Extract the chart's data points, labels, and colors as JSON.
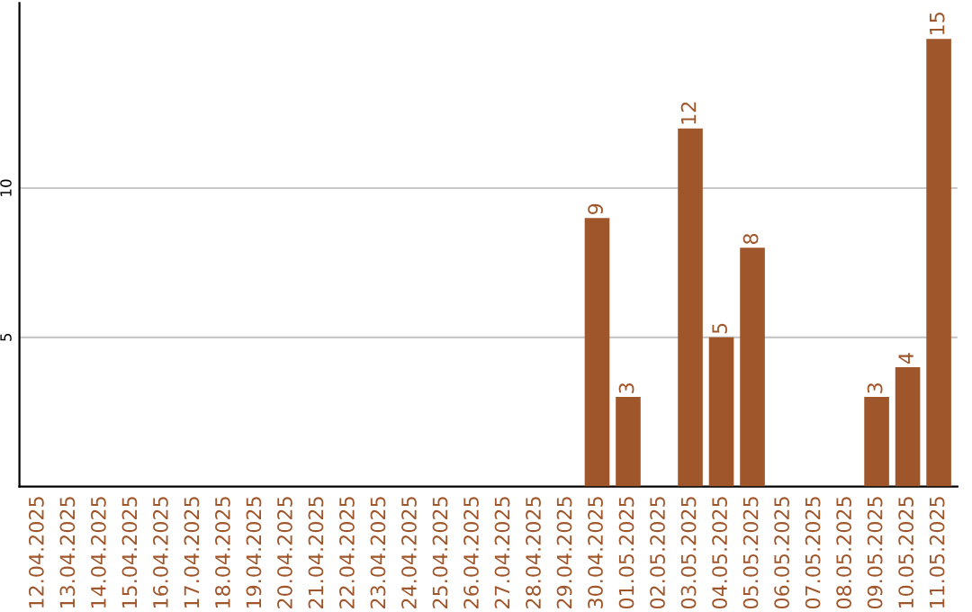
{
  "chart_data": {
    "type": "bar",
    "categories": [
      "12.04.2025",
      "13.04.2025",
      "14.04.2025",
      "15.04.2025",
      "16.04.2025",
      "17.04.2025",
      "18.04.2025",
      "19.04.2025",
      "20.04.2025",
      "21.04.2025",
      "22.04.2025",
      "23.04.2025",
      "24.04.2025",
      "25.04.2025",
      "26.04.2025",
      "27.04.2025",
      "28.04.2025",
      "29.04.2025",
      "30.04.2025",
      "01.05.2025",
      "02.05.2025",
      "03.05.2025",
      "04.05.2025",
      "05.05.2025",
      "06.05.2025",
      "07.05.2025",
      "08.05.2025",
      "09.05.2025",
      "10.05.2025",
      "11.05.2025"
    ],
    "values": [
      null,
      null,
      null,
      null,
      null,
      null,
      null,
      null,
      null,
      null,
      null,
      null,
      null,
      null,
      null,
      null,
      null,
      null,
      9,
      3,
      null,
      12,
      5,
      8,
      null,
      null,
      null,
      3,
      4,
      15
    ],
    "color": "#a0562b",
    "ylim": [
      0,
      16.2
    ],
    "yticks": [
      5,
      10
    ],
    "grid": "y",
    "data_labels": true
  }
}
